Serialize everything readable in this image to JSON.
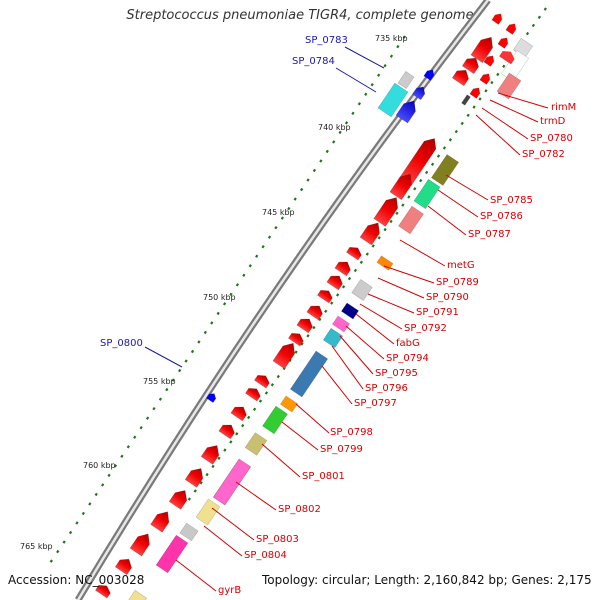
{
  "title": "Streptococcus pneumoniae TIGR4, complete genome",
  "footer": {
    "accession": "Accession: NC_003028",
    "topology": "Topology: circular; Length: 2,160,842 bp; Genes: 2,175"
  },
  "scale_labels": [
    "735 kbp",
    "740 kbp",
    "745 kbp",
    "750 kbp",
    "755 kbp",
    "760 kbp",
    "765 kbp"
  ],
  "gene_labels_red": [
    "rimM",
    "trmD",
    "SP_0780",
    "SP_0782",
    "SP_0785",
    "SP_0786",
    "SP_0787",
    "metG",
    "SP_0789",
    "SP_0790",
    "SP_0791",
    "SP_0792",
    "fabG",
    "SP_0794",
    "SP_0795",
    "SP_0796",
    "SP_0797",
    "SP_0798",
    "SP_0799",
    "SP_0801",
    "SP_0802",
    "SP_0803",
    "SP_0804",
    "gyrB"
  ],
  "gene_labels_blue": [
    "SP_0783",
    "SP_0784",
    "SP_0800"
  ],
  "colors": {
    "forward_cds": "#ff0000",
    "reverse_cds": "#0000ff",
    "backbone": "#888888",
    "tick": "#1a7a1a",
    "label_red": "#d40000",
    "label_blue": "#1a1aa8"
  }
}
